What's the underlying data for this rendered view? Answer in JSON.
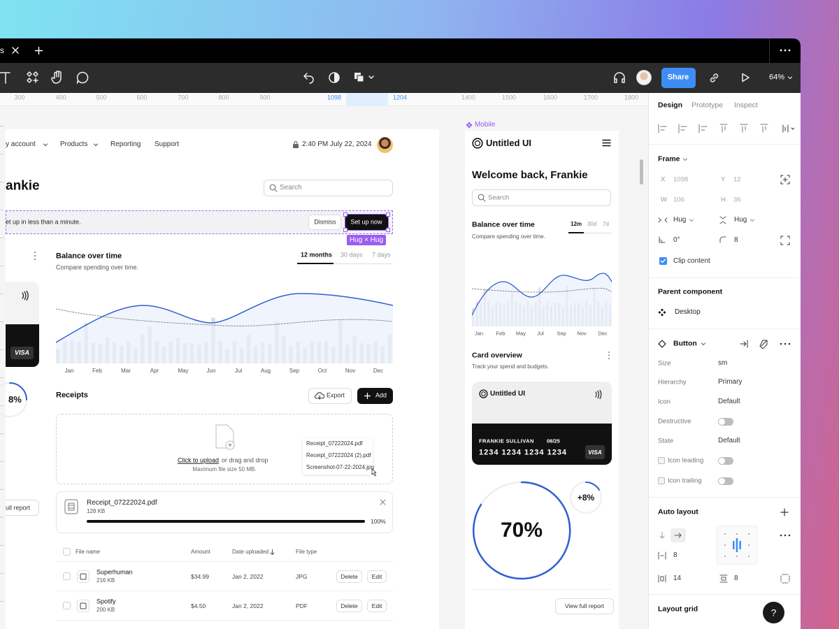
{
  "tab": {
    "title": "s"
  },
  "toolbar": {
    "share": "Share",
    "zoom": "64%"
  },
  "ruler": [
    300,
    400,
    500,
    600,
    700,
    800,
    900,
    1098,
    1204,
    1400,
    1500,
    1600,
    1700,
    1800
  ],
  "desktop": {
    "nav": [
      "y account",
      "Products",
      "Reporting",
      "Support"
    ],
    "datetime": "2:40 PM July 22, 2024",
    "heading": "ankie",
    "search": "Search",
    "banner": {
      "text": "et up in less than a minute.",
      "dismiss": "Dismiss",
      "cta": "Set up now",
      "hug": "Hug × Hug"
    },
    "card_brand": "VISA",
    "stat": "8%",
    "report_button": "ull report",
    "balance": {
      "title": "Balance over time",
      "subtitle": "Compare spending over time.",
      "tabs": [
        "12 months",
        "30 days",
        "7 days"
      ],
      "months": [
        "Jan",
        "Feb",
        "Mar",
        "Apr",
        "May",
        "Jun",
        "Jul",
        "Aug",
        "Sep",
        "Oct",
        "Nov",
        "Dec"
      ]
    },
    "receipts": {
      "title": "Receipts",
      "export": "Export",
      "add": "Add",
      "upload_link": "Click to upload",
      "upload_text": "or drag and drop",
      "upload_hint": "Maximum file size 50 MB.",
      "dragged": [
        "Receipt_07222024.pdf",
        "Receipt_07222024 (2).pdf",
        "Screenshot-07-22-2024.jpg"
      ],
      "file": {
        "name": "Receipt_07222024.pdf",
        "size": "128 KB",
        "progress": "100%"
      }
    },
    "table": {
      "columns": [
        "File name",
        "Amount",
        "Date uploaded",
        "File type"
      ],
      "rows": [
        [
          "Superhuman",
          "216 KB",
          "$34.99",
          "Jan 2, 2022",
          "JPG"
        ],
        [
          "Spotify",
          "200 KB",
          "$4.50",
          "Jan 2, 2022",
          "PDF"
        ]
      ],
      "actions": [
        "Delete",
        "Edit"
      ]
    }
  },
  "mobile": {
    "label": "Mobile",
    "logo": "Untitled UI",
    "welcome": "Welcome back, Frankie",
    "search": "Search",
    "balance": {
      "title": "Balance over time",
      "subtitle": "Compare spending over time.",
      "tabs": [
        "12m",
        "30d",
        "7d"
      ],
      "months": [
        "Jan",
        "Feb",
        "May",
        "Jul",
        "Sep",
        "Nov",
        "Dec"
      ]
    },
    "card_overview": {
      "title": "Card overview",
      "subtitle": "Track your spend and budgets."
    },
    "card": {
      "logo": "Untitled UI",
      "holder": "FRANKIE SULLIVAN",
      "expiry": "08/25",
      "number": "1234 1234 1234 1234",
      "brand": "VISA"
    },
    "progress": "70%",
    "change": "+8%",
    "report_button": "View full report"
  },
  "panel": {
    "tabs": [
      "Design",
      "Prototype",
      "Inspect"
    ],
    "frame": {
      "title": "Frame",
      "fields": [
        {
          "label": "X",
          "value": 1098
        },
        {
          "label": "Y",
          "value": 12
        },
        {
          "label": "W",
          "value": 106
        },
        {
          "label": "H",
          "value": 36
        }
      ],
      "width": "Hug",
      "height": "Hug",
      "rotation": "0°",
      "radius": 8,
      "clip": "Clip content"
    },
    "parent": {
      "title": "Parent component",
      "name": "Desktop"
    },
    "button": {
      "title": "Button",
      "props": [
        {
          "label": "Size",
          "value": "sm"
        },
        {
          "label": "Hierarchy",
          "value": "Primary"
        },
        {
          "label": "Icon",
          "value": "Default"
        },
        {
          "label": "Destructive",
          "toggle": false
        },
        {
          "label": "State",
          "value": "Default"
        },
        {
          "label": "Icon leading",
          "toggle": false
        },
        {
          "label": "Icon trailing",
          "toggle": false
        }
      ]
    },
    "auto_layout": {
      "title": "Auto layout",
      "gap": 8,
      "padding_h": 14,
      "padding_v": 8
    },
    "layout_grid": "Layout grid",
    "help": "?"
  }
}
